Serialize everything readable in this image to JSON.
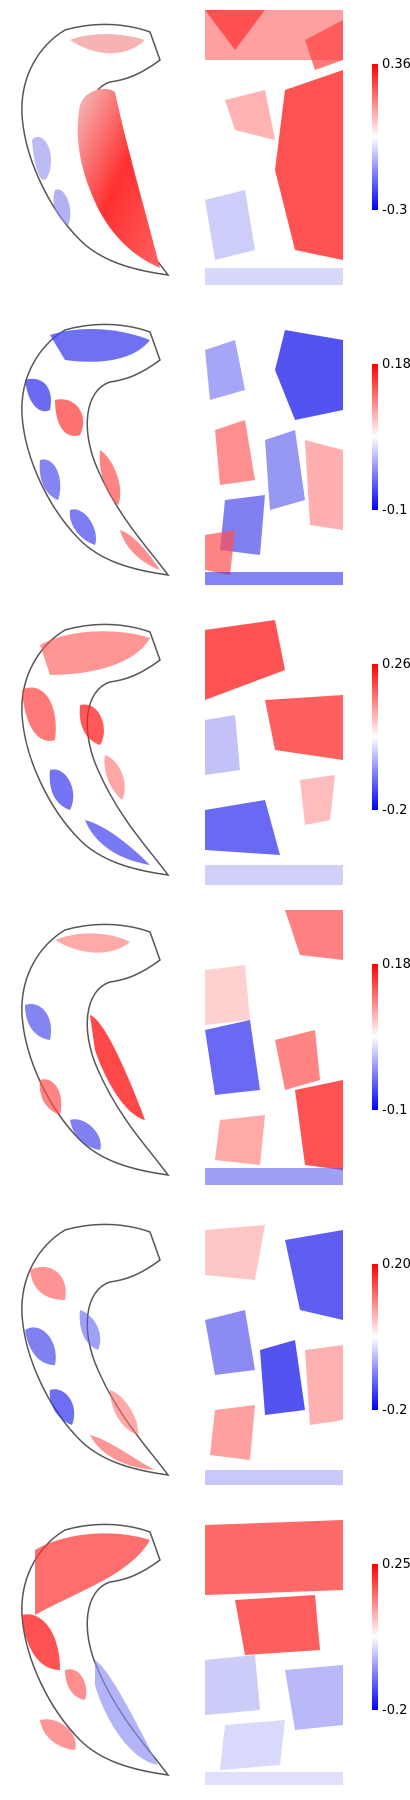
{
  "panels": [
    {
      "colorbar_max": "0.36",
      "colorbar_min": "-0.3"
    },
    {
      "colorbar_max": "0.18",
      "colorbar_min": "-0.1"
    },
    {
      "colorbar_max": "0.26",
      "colorbar_min": "-0.2"
    },
    {
      "colorbar_max": "0.18",
      "colorbar_min": "-0.1"
    },
    {
      "colorbar_max": "0.20",
      "colorbar_min": "-0.2"
    },
    {
      "colorbar_max": "0.25",
      "colorbar_min": "-0.2"
    }
  ],
  "colors": {
    "positive": "#ff0000",
    "neutral": "#ffffff",
    "negative": "#0000ff"
  }
}
